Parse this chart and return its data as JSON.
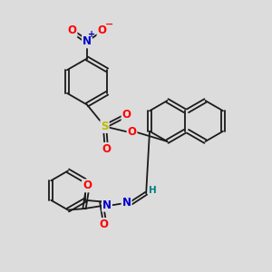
{
  "bg_color": "#dcdcdc",
  "bond_color": "#1a1a1a",
  "bond_lw": 1.3,
  "atom_colors": {
    "O": "#ff0000",
    "N": "#0000cc",
    "S": "#bbbb00",
    "H": "#008080",
    "C": "#1a1a1a"
  },
  "figsize": [
    3.0,
    3.0
  ],
  "dpi": 100,
  "xlim": [
    0,
    10
  ],
  "ylim": [
    0,
    10
  ]
}
